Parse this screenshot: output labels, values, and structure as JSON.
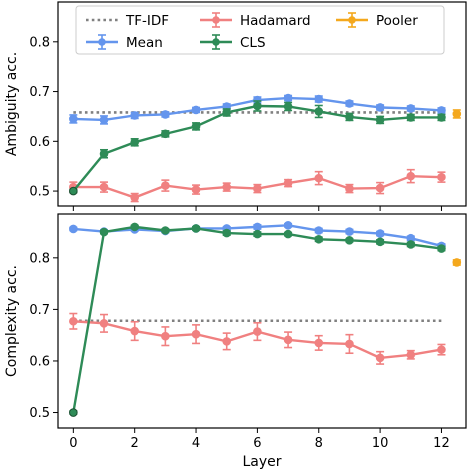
{
  "chart_data": [
    {
      "type": "line",
      "ylabel": "Ambiguity acc.",
      "xlabel": "",
      "ylim": [
        0.47,
        0.88
      ],
      "xlim": [
        -0.5,
        12.8
      ],
      "yticks": [
        "0.5",
        "0.6",
        "0.7",
        "0.8"
      ],
      "ytick_values": [
        0.5,
        0.6,
        0.7,
        0.8
      ],
      "grid": false,
      "legend": "top",
      "legend_entries": [
        {
          "label": "TF-IDF",
          "color": "#808080",
          "style": "dotted"
        },
        {
          "label": "Mean",
          "color": "#6495ED",
          "style": "errorbar"
        },
        {
          "label": "Hadamard",
          "color": "#F08080",
          "style": "errorbar"
        },
        {
          "label": "CLS",
          "color": "#2E8B57",
          "style": "errorbar"
        },
        {
          "label": "Pooler",
          "color": "#F4A81D",
          "style": "errorbar"
        }
      ],
      "x": [
        0,
        1,
        2,
        3,
        4,
        5,
        6,
        7,
        8,
        9,
        10,
        11,
        12
      ],
      "series": [
        {
          "name": "TF-IDF",
          "color": "#808080",
          "kind": "hline",
          "value": 0.658,
          "x_range": [
            0,
            12
          ]
        },
        {
          "name": "Mean",
          "color": "#6495ED",
          "values": [
            0.645,
            0.643,
            0.652,
            0.654,
            0.663,
            0.67,
            0.683,
            0.687,
            0.685,
            0.676,
            0.668,
            0.666,
            0.662
          ],
          "err": [
            0.008,
            0.008,
            0.006,
            0.005,
            0.005,
            0.005,
            0.006,
            0.005,
            0.006,
            0.005,
            0.005,
            0.005,
            0.005
          ]
        },
        {
          "name": "Hadamard",
          "color": "#F08080",
          "values": [
            0.508,
            0.508,
            0.487,
            0.511,
            0.503,
            0.508,
            0.505,
            0.516,
            0.526,
            0.505,
            0.506,
            0.53,
            0.528
          ],
          "err": [
            0.01,
            0.01,
            0.008,
            0.011,
            0.009,
            0.008,
            0.008,
            0.007,
            0.013,
            0.008,
            0.011,
            0.013,
            0.01
          ]
        },
        {
          "name": "CLS",
          "color": "#2E8B57",
          "values": [
            0.5,
            0.575,
            0.598,
            0.615,
            0.63,
            0.658,
            0.671,
            0.67,
            0.66,
            0.649,
            0.643,
            0.648,
            0.648
          ],
          "err": [
            0.003,
            0.008,
            0.007,
            0.006,
            0.007,
            0.007,
            0.01,
            0.008,
            0.012,
            0.007,
            0.007,
            0.006,
            0.006
          ]
        },
        {
          "name": "Pooler",
          "color": "#F4A81D",
          "values_at": {
            "x": [
              12.5
            ],
            "y": [
              0.655
            ],
            "err": [
              0.008
            ]
          }
        }
      ]
    },
    {
      "type": "line",
      "ylabel": "Complexity acc.",
      "xlabel": "Layer",
      "ylim": [
        0.47,
        0.885
      ],
      "xlim": [
        -0.5,
        12.8
      ],
      "yticks": [
        "0.5",
        "0.6",
        "0.7",
        "0.8"
      ],
      "ytick_values": [
        0.5,
        0.6,
        0.7,
        0.8
      ],
      "xticks": [
        "0",
        "2",
        "4",
        "6",
        "8",
        "10",
        "12"
      ],
      "xtick_values": [
        0,
        2,
        4,
        6,
        8,
        10,
        12
      ],
      "grid": false,
      "x": [
        0,
        1,
        2,
        3,
        4,
        5,
        6,
        7,
        8,
        9,
        10,
        11,
        12
      ],
      "series": [
        {
          "name": "TF-IDF",
          "color": "#808080",
          "kind": "hline",
          "value": 0.678,
          "x_range": [
            0,
            12
          ]
        },
        {
          "name": "Mean",
          "color": "#6495ED",
          "values": [
            0.856,
            0.851,
            0.855,
            0.852,
            0.857,
            0.857,
            0.86,
            0.863,
            0.853,
            0.851,
            0.847,
            0.838,
            0.823
          ],
          "err": [
            0.003,
            0.003,
            0.003,
            0.003,
            0.003,
            0.003,
            0.004,
            0.003,
            0.004,
            0.004,
            0.004,
            0.004,
            0.004
          ]
        },
        {
          "name": "Hadamard",
          "color": "#F08080",
          "values": [
            0.677,
            0.673,
            0.658,
            0.648,
            0.652,
            0.638,
            0.657,
            0.641,
            0.635,
            0.633,
            0.606,
            0.612,
            0.622
          ],
          "err": [
            0.015,
            0.017,
            0.018,
            0.018,
            0.018,
            0.016,
            0.017,
            0.015,
            0.014,
            0.018,
            0.012,
            0.008,
            0.01
          ]
        },
        {
          "name": "CLS",
          "color": "#2E8B57",
          "values": [
            0.5,
            0.85,
            0.86,
            0.853,
            0.857,
            0.848,
            0.846,
            0.846,
            0.836,
            0.834,
            0.831,
            0.826,
            0.818
          ],
          "err": [
            0.003,
            0.003,
            0.003,
            0.003,
            0.003,
            0.004,
            0.004,
            0.003,
            0.004,
            0.003,
            0.004,
            0.004,
            0.004
          ]
        },
        {
          "name": "Pooler",
          "color": "#F4A81D",
          "values_at": {
            "x": [
              12.5
            ],
            "y": [
              0.791
            ],
            "err": [
              0.005
            ]
          }
        }
      ]
    }
  ]
}
